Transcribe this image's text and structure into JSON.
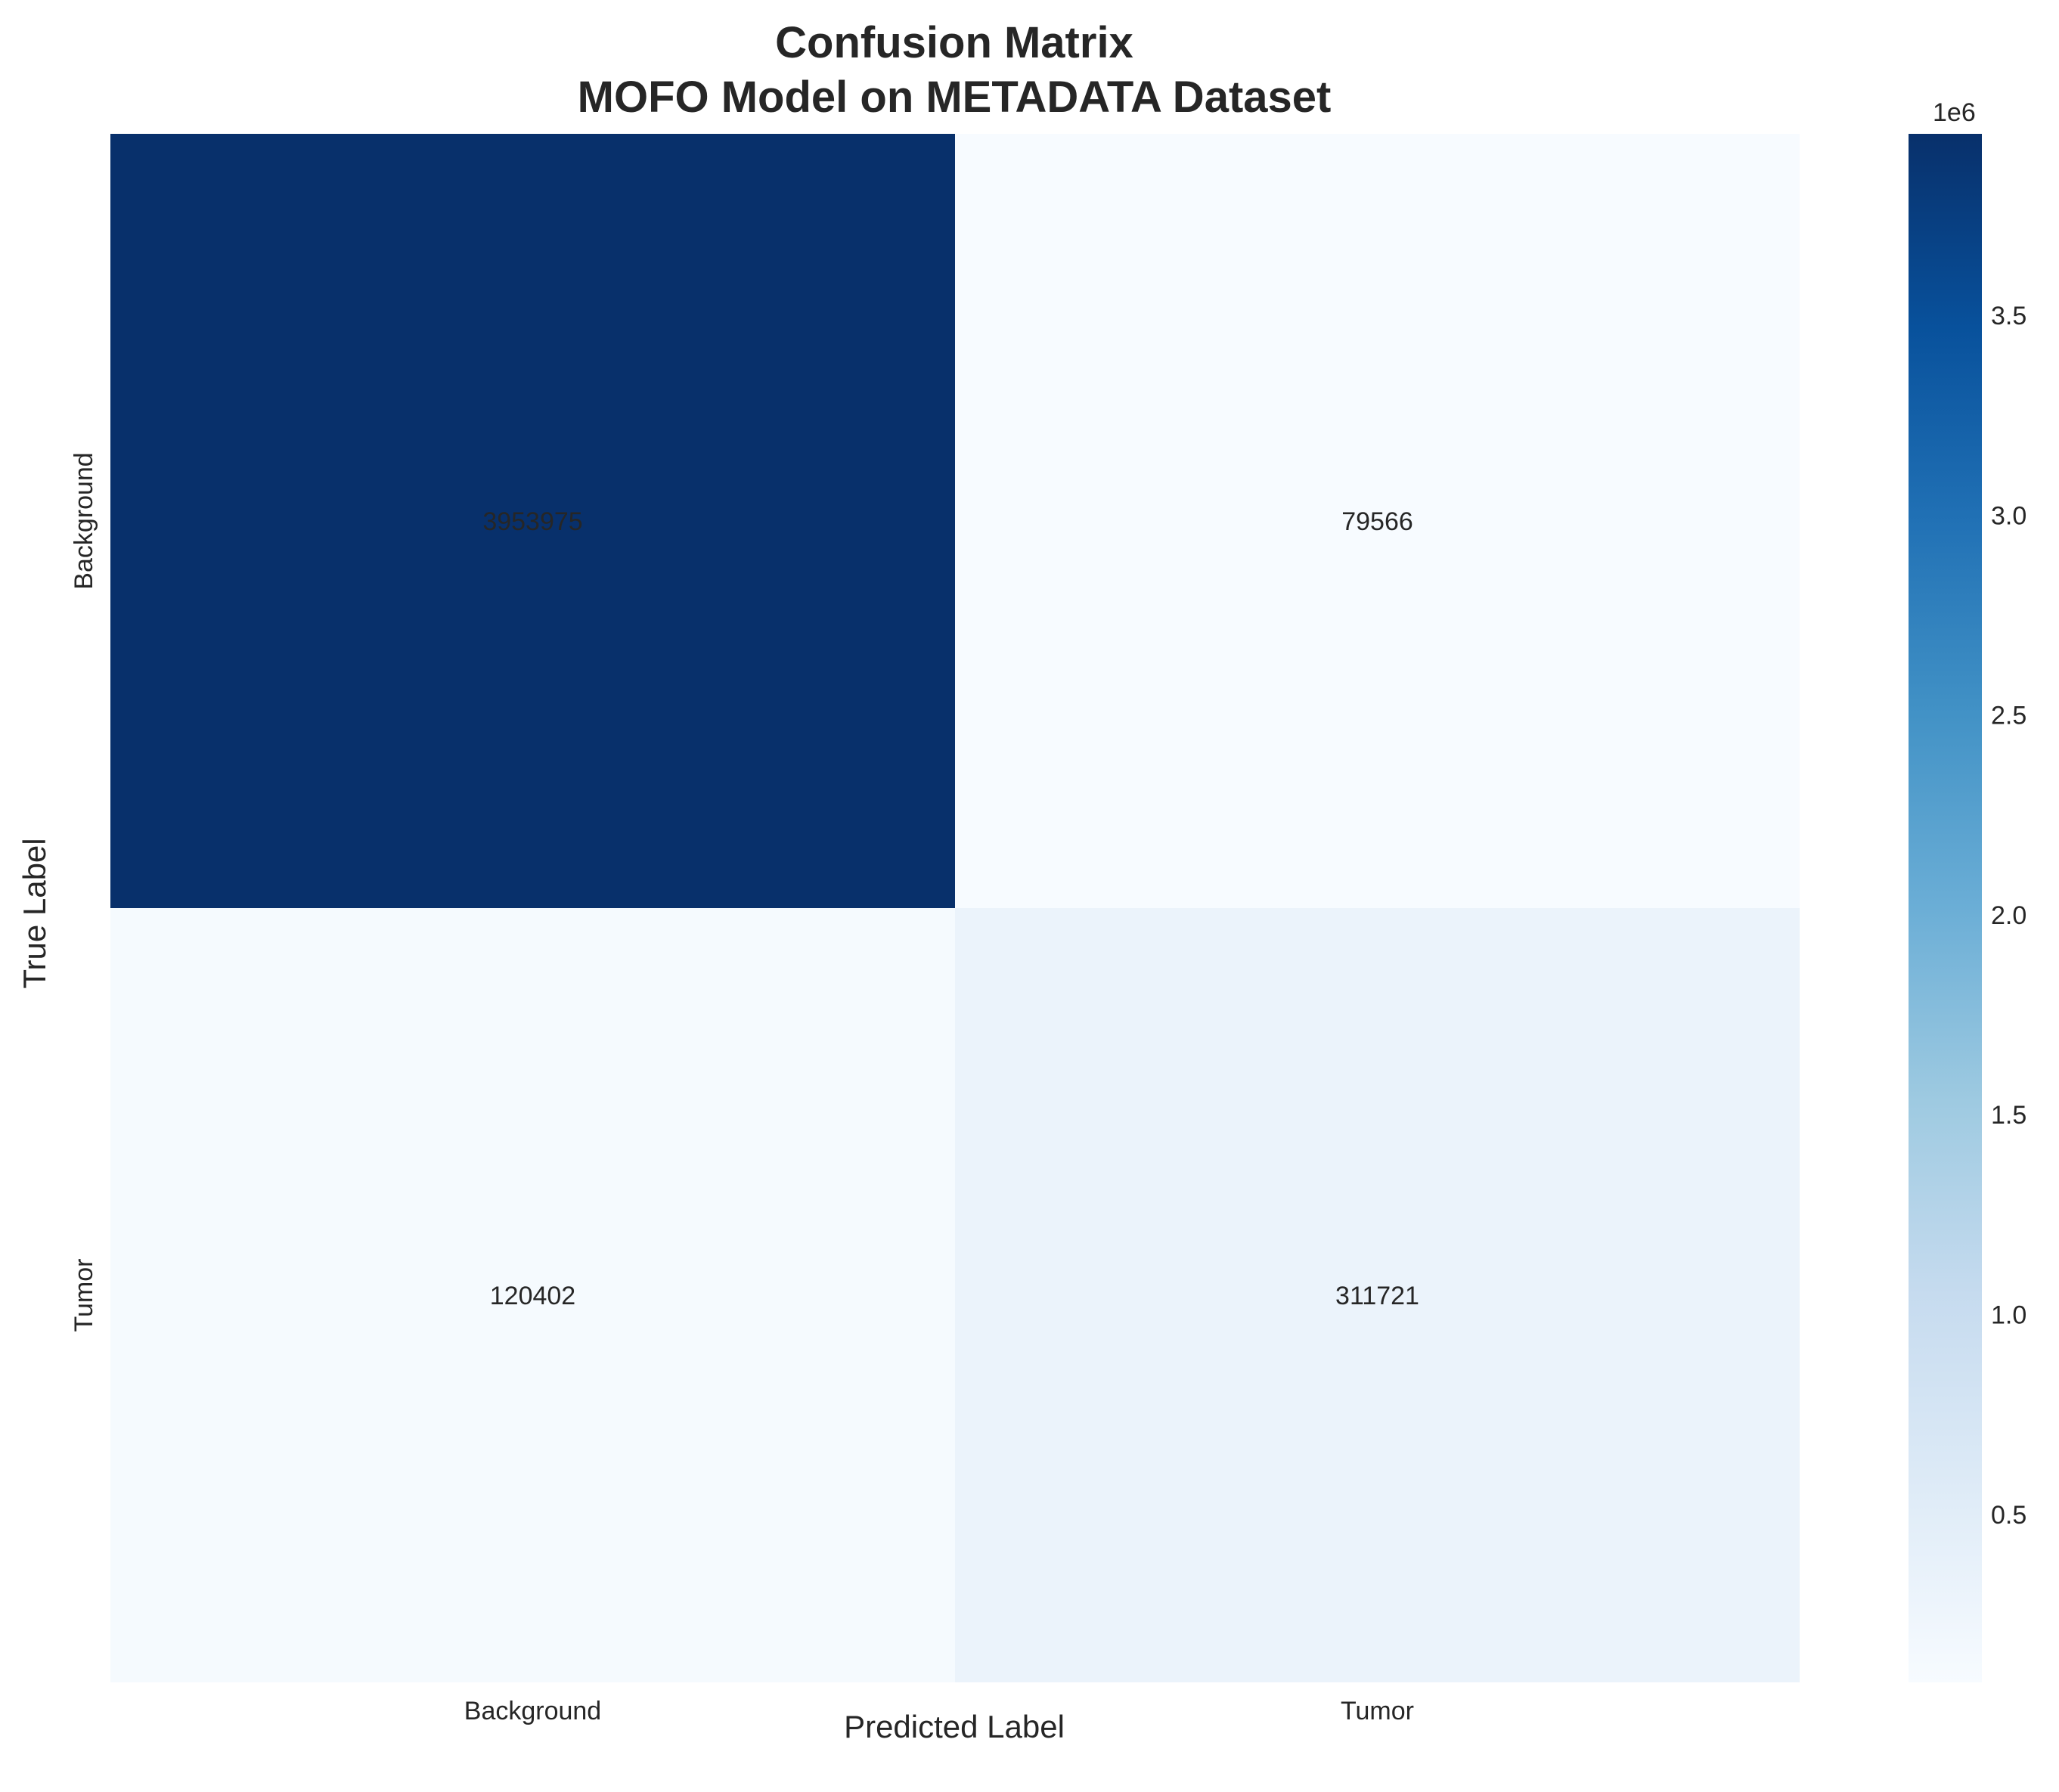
{
  "chart_data": {
    "type": "heatmap",
    "title_lines": [
      "Confusion Matrix",
      "MOFO Model on METADATA Dataset"
    ],
    "xlabel": "Predicted Label",
    "ylabel": "True Label",
    "x_categories": [
      "Background",
      "Tumor"
    ],
    "y_categories": [
      "Background",
      "Tumor"
    ],
    "values": [
      [
        3953975,
        79566
      ],
      [
        120402,
        311721
      ]
    ],
    "colormap": "Blues",
    "colorbar": {
      "offset_text": "1e6",
      "ticks": [
        0.5,
        1.0,
        1.5,
        2.0,
        2.5,
        3.0,
        3.5
      ],
      "tick_labels": [
        "0.5",
        "1.0",
        "1.5",
        "2.0",
        "2.5",
        "3.0",
        "3.5"
      ],
      "range": [
        79566,
        3953975
      ]
    },
    "grid": false,
    "colors": {
      "dark_text": "#262626",
      "light_text": "#ffffff"
    }
  }
}
